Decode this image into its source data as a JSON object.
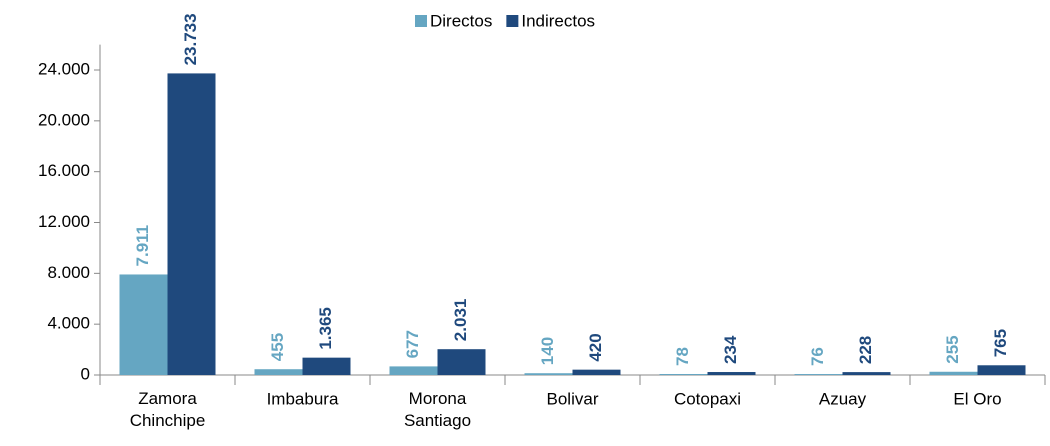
{
  "chart_data": {
    "type": "bar",
    "categories": [
      "Zamora\nChinchipe",
      "Imbabura",
      "Morona\nSantiago",
      "Bolivar",
      "Cotopaxi",
      "Azuay",
      "El Oro"
    ],
    "series": [
      {
        "name": "Directos",
        "color": "#65a6c2",
        "values": [
          7911,
          455,
          677,
          140,
          78,
          76,
          255
        ],
        "value_labels": [
          "7.911",
          "455",
          "677",
          "140",
          "78",
          "76",
          "255"
        ]
      },
      {
        "name": "Indirectos",
        "color": "#1f497d",
        "values": [
          23733,
          1365,
          2031,
          420,
          234,
          228,
          765
        ],
        "value_labels": [
          "23.733",
          "1.365",
          "2.031",
          "420",
          "234",
          "228",
          "765"
        ]
      }
    ],
    "ylim": [
      0,
      26000
    ],
    "yticks": [
      0,
      {
        "value": 4000,
        "label": "4.000"
      },
      {
        "value": 8000,
        "label": "8.000"
      },
      {
        "value": 12000,
        "label": "12.000"
      },
      {
        "value": 16000,
        "label": "16.000"
      },
      {
        "value": 20000,
        "label": "20.000"
      },
      {
        "value": 24000,
        "label": "24.000"
      }
    ],
    "legend": "top",
    "grid": false
  }
}
